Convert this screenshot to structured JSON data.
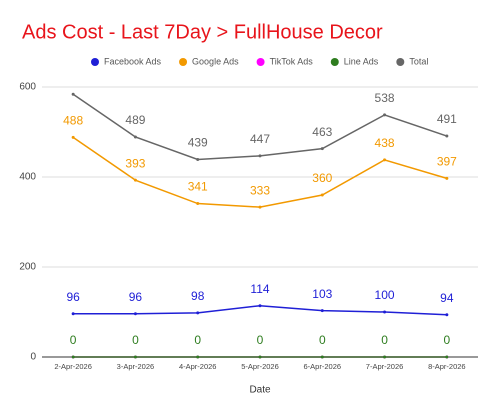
{
  "chart_data": {
    "type": "line",
    "title": "Ads Cost - Last 7Day > FullHouse Decor",
    "x_label": "Date",
    "categories": [
      "2-Apr-2026",
      "3-Apr-2026",
      "4-Apr-2026",
      "5-Apr-2026",
      "6-Apr-2026",
      "7-Apr-2026",
      "8-Apr-2026"
    ],
    "series": [
      {
        "name": "Facebook Ads",
        "color": "#1f1fd6",
        "values": [
          96,
          96,
          98,
          114,
          103,
          100,
          94
        ]
      },
      {
        "name": "Google Ads",
        "color": "#f29900",
        "values": [
          488,
          393,
          341,
          333,
          360,
          438,
          397
        ]
      },
      {
        "name": "TikTok Ads",
        "color": "#ff00ff",
        "values": [
          0,
          0,
          0,
          0,
          0,
          0,
          0
        ],
        "value_labels": [
          null,
          null,
          null,
          null,
          null,
          null,
          null
        ]
      },
      {
        "name": "Line Ads",
        "color": "#2e7d1f",
        "values": [
          0,
          0,
          0,
          0,
          0,
          0,
          0
        ]
      },
      {
        "name": "Total",
        "color": "#666666",
        "values": [
          584,
          489,
          439,
          447,
          463,
          538,
          491
        ],
        "value_labels": [
          null,
          "489",
          "439",
          "447",
          "463",
          "538",
          "491"
        ]
      }
    ],
    "ylim": [
      0,
      600
    ],
    "yticks": [
      0,
      200,
      400,
      600
    ],
    "grid": true
  }
}
